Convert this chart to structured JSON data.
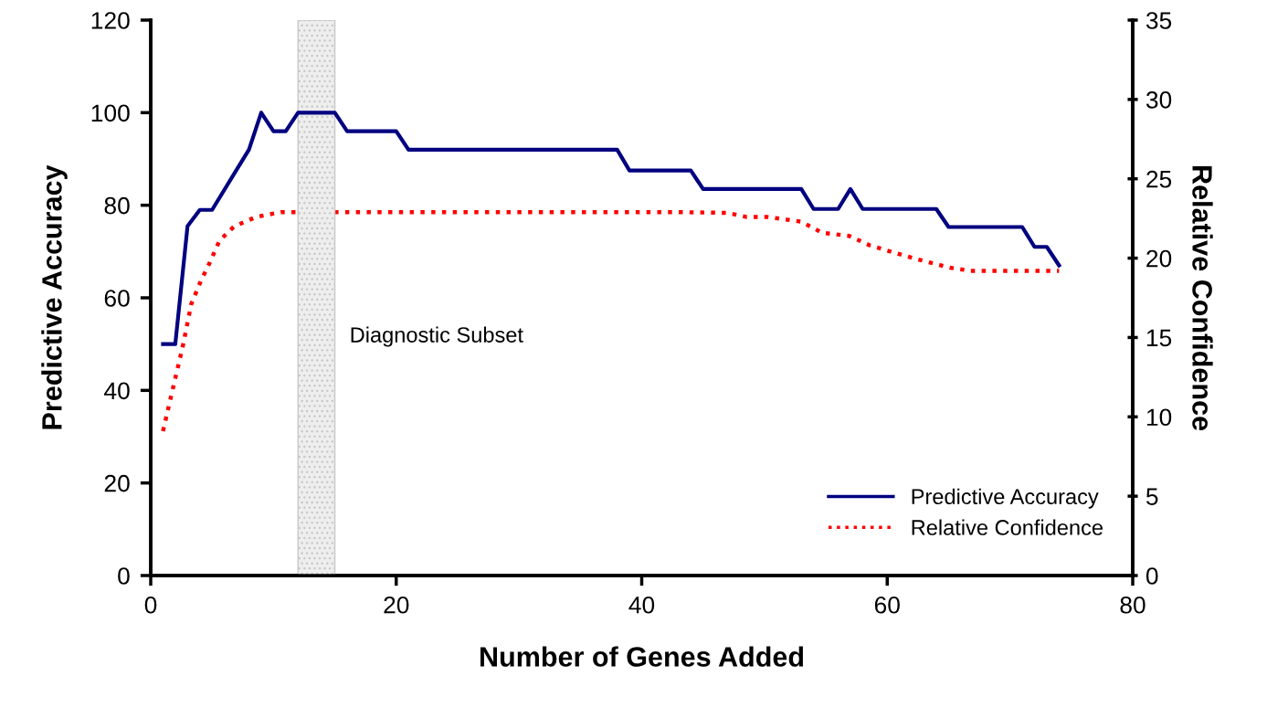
{
  "chart_data": {
    "type": "line",
    "xlabel": "Number of Genes Added",
    "ylabel": "Predictive Accuracy",
    "y2label": "Relative Confidence",
    "xlim": [
      0,
      80
    ],
    "xticks": [
      0,
      20,
      40,
      60,
      80
    ],
    "ylim": [
      0,
      120
    ],
    "yticks": [
      0,
      20,
      40,
      60,
      80,
      100,
      120
    ],
    "y2lim": [
      0,
      35
    ],
    "y2ticks": [
      0,
      5,
      10,
      15,
      20,
      25,
      30,
      35
    ],
    "grid": false,
    "legend": "bottom right",
    "marker": "none",
    "series": [
      {
        "name": "Predictive Accuracy",
        "color": "#000080",
        "line_style": "solid",
        "x": [
          1,
          2,
          3,
          4,
          5,
          8,
          9,
          10,
          11,
          12,
          15,
          16,
          20,
          21,
          38,
          39,
          44,
          45,
          53,
          54,
          56,
          57,
          58,
          64,
          65,
          71,
          72,
          73,
          74
        ],
        "values": [
          50,
          50,
          75.5,
          79,
          79,
          92,
          100,
          96,
          96,
          100,
          100,
          96,
          96,
          92,
          92,
          87.5,
          87.5,
          83.5,
          83.5,
          79.2,
          79.2,
          83.5,
          79.2,
          79.2,
          75.3,
          75.3,
          71,
          71,
          67
        ]
      },
      {
        "name": "Relative Confidence",
        "color": "#ff0000",
        "line_style": "dotted",
        "axis": "y2",
        "x": [
          1,
          1.9,
          2.6,
          3.3,
          4.1,
          4.8,
          5.6,
          6.8,
          8.6,
          10.6,
          12,
          43,
          47,
          48.5,
          50.2,
          53,
          54.7,
          56.9,
          58.6,
          62.1,
          65.1,
          66.8,
          70,
          74
        ],
        "values": [
          9.1,
          12.1,
          14.4,
          17.1,
          18.6,
          19.7,
          21.1,
          22,
          22.6,
          22.9,
          22.9,
          22.9,
          22.85,
          22.6,
          22.6,
          22.3,
          21.6,
          21.4,
          20.8,
          20,
          19.4,
          19.2,
          19.2,
          19.2
        ]
      }
    ],
    "bands": [
      {
        "axis": "x",
        "from": 12,
        "to": 15,
        "label": "Diagnostic Subset",
        "color": "#c8c8c8"
      }
    ]
  }
}
